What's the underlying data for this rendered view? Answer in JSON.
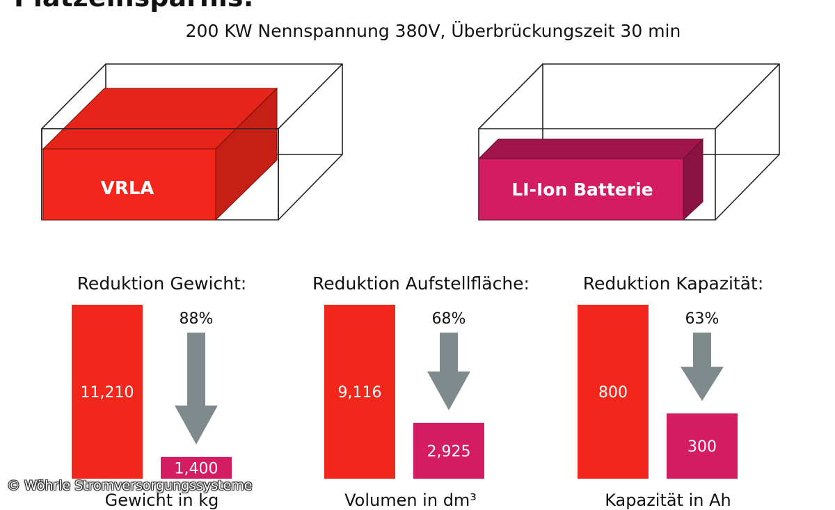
{
  "heading": "Platzeinsparnis:",
  "subtitle": "200 KW Nennspannung 380V, Überbrückungszeit 30 min",
  "boxes": {
    "vrla_label": "VRLA",
    "liion_label": "LI-Ion Batterie"
  },
  "colors": {
    "vrla": "#f2261b",
    "liion": "#d41c63",
    "arrow": "#7f8a8c"
  },
  "chart_data": [
    {
      "type": "bar",
      "title": "Reduktion Gewicht:",
      "xlabel": "Gewicht in kg",
      "categories": [
        "VRLA",
        "LI-Ion Batterie"
      ],
      "values": [
        11210,
        1400
      ],
      "value_labels": [
        "11,210",
        "1,400"
      ],
      "reduction_label": "88%"
    },
    {
      "type": "bar",
      "title": "Reduktion Aufstellfläche:",
      "xlabel": "Volumen in dm³",
      "categories": [
        "VRLA",
        "LI-Ion Batterie"
      ],
      "values": [
        9116,
        2925
      ],
      "value_labels": [
        "9,116",
        "2,925"
      ],
      "reduction_label": "68%"
    },
    {
      "type": "bar",
      "title": "Reduktion Kapazität:",
      "xlabel": "Kapazität in Ah",
      "categories": [
        "VRLA",
        "LI-Ion Batterie"
      ],
      "values": [
        800,
        300
      ],
      "value_labels": [
        "800",
        "300"
      ],
      "reduction_label": "63%"
    }
  ],
  "copyright": "© Wöhrle Stromversorgungssysteme"
}
